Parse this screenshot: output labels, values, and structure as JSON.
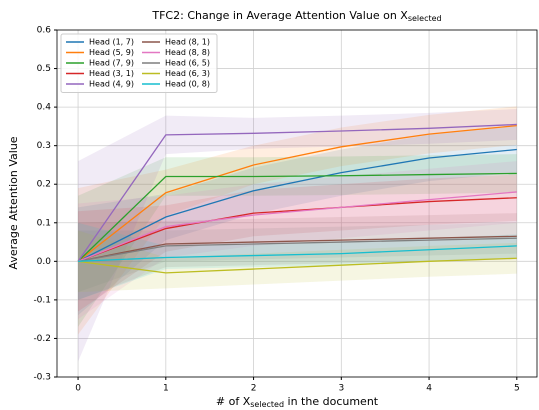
{
  "chart_data": {
    "type": "line",
    "title": [
      "TFC2: Change in Average Attention Value on X",
      "selected"
    ],
    "xlabel": [
      "# of X",
      "selected",
      " in the document"
    ],
    "ylabel": "Average Attention Value",
    "x": [
      0,
      1,
      2,
      3,
      4,
      5
    ],
    "xlim": [
      -0.24,
      5.23
    ],
    "xticks": [
      0,
      1,
      2,
      3,
      4,
      5
    ],
    "ylim": [
      -0.3,
      0.6
    ],
    "yticks": [
      {
        "value": -0.3,
        "label": "-0.3"
      },
      {
        "value": -0.2,
        "label": "-0.2"
      },
      {
        "value": -0.1,
        "label": "-0.1"
      },
      {
        "value": 0,
        "label": "0.0"
      },
      {
        "value": 0.1,
        "label": "0.1"
      },
      {
        "value": 0.2,
        "label": "0.2"
      },
      {
        "value": 0.3,
        "label": "0.3"
      },
      {
        "value": 0.4,
        "label": "0.4"
      },
      {
        "value": 0.5,
        "label": "0.5"
      },
      {
        "value": 0.6,
        "label": "0.6"
      }
    ],
    "grid": true,
    "legend": "upper left",
    "series": [
      {
        "name": "Head (1, 7)",
        "color": "#1f77b4",
        "values": [
          0,
          0.115,
          0.183,
          0.23,
          0.268,
          0.29
        ],
        "error": [
          0.14,
          0.06,
          0.06,
          0.06,
          0.06,
          0.06
        ]
      },
      {
        "name": "Head (5, 9)",
        "color": "#ff7f0e",
        "values": [
          0,
          0.178,
          0.25,
          0.297,
          0.33,
          0.352
        ],
        "error": [
          0.19,
          0.06,
          0.05,
          0.05,
          0.05,
          0.05
        ]
      },
      {
        "name": "Head (7, 9)",
        "color": "#2ca02c",
        "values": [
          0,
          0.22,
          0.22,
          0.222,
          0.225,
          0.228
        ],
        "error": [
          0.17,
          0.05,
          0.05,
          0.05,
          0.05,
          0.05
        ]
      },
      {
        "name": "Head (3, 1)",
        "color": "#d62728",
        "values": [
          0,
          0.085,
          0.125,
          0.14,
          0.155,
          0.165
        ],
        "error": [
          0.13,
          0.06,
          0.06,
          0.06,
          0.06,
          0.06
        ]
      },
      {
        "name": "Head (4, 9)",
        "color": "#9467bd",
        "values": [
          0,
          0.328,
          0.332,
          0.338,
          0.345,
          0.355
        ],
        "error": [
          0.26,
          0.05,
          0.04,
          0.04,
          0.04,
          0.04
        ]
      },
      {
        "name": "Head (8, 1)",
        "color": "#8c564b",
        "values": [
          0,
          0.045,
          0.05,
          0.055,
          0.06,
          0.065
        ],
        "error": [
          0.1,
          0.06,
          0.06,
          0.06,
          0.06,
          0.06
        ]
      },
      {
        "name": "Head (8, 8)",
        "color": "#e377c2",
        "values": [
          0,
          0.09,
          0.12,
          0.14,
          0.16,
          0.18
        ],
        "error": [
          0.15,
          0.08,
          0.08,
          0.08,
          0.08,
          0.08
        ]
      },
      {
        "name": "Head (6, 5)",
        "color": "#7f7f7f",
        "values": [
          0,
          0.04,
          0.045,
          0.05,
          0.055,
          0.06
        ],
        "error": [
          0.08,
          0.04,
          0.04,
          0.04,
          0.04,
          0.04
        ]
      },
      {
        "name": "Head (6, 3)",
        "color": "#bcbd22",
        "values": [
          0,
          -0.03,
          -0.02,
          -0.01,
          0,
          0.008
        ],
        "error": [
          0.08,
          0.04,
          0.04,
          0.04,
          0.04,
          0.04
        ]
      },
      {
        "name": "Head (0, 8)",
        "color": "#17becf",
        "values": [
          0,
          0.01,
          0.015,
          0.02,
          0.03,
          0.04
        ],
        "error": [
          0.1,
          0.03,
          0.03,
          0.03,
          0.03,
          0.03
        ]
      }
    ]
  }
}
